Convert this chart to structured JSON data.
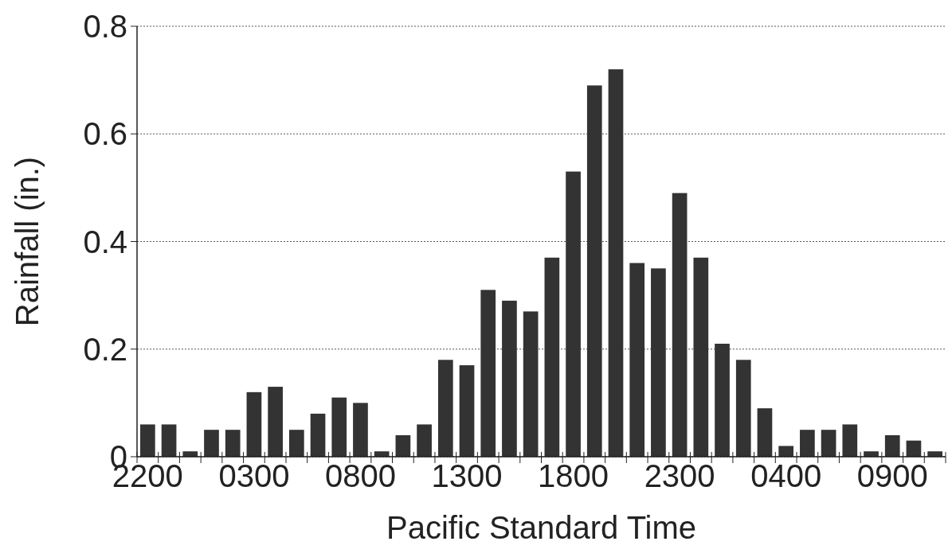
{
  "chart_data": {
    "type": "bar",
    "xlabel": "Pacific Standard Time",
    "ylabel": "Rainfall (in.)",
    "categories": [
      "2200",
      null,
      null,
      null,
      null,
      "0300",
      null,
      null,
      null,
      null,
      "0800",
      null,
      null,
      null,
      null,
      "1300",
      null,
      null,
      null,
      null,
      "1800",
      null,
      null,
      null,
      null,
      "2300",
      null,
      null,
      null,
      null,
      "0400",
      null,
      null,
      null,
      null,
      "0900",
      null,
      null
    ],
    "values": [
      0.06,
      0.06,
      0.01,
      0.05,
      0.05,
      0.12,
      0.13,
      0.05,
      0.08,
      0.11,
      0.1,
      0.01,
      0.04,
      0.06,
      0.18,
      0.17,
      0.31,
      0.29,
      0.27,
      0.37,
      0.53,
      0.69,
      0.72,
      0.36,
      0.35,
      0.49,
      0.37,
      0.21,
      0.18,
      0.09,
      0.02,
      0.05,
      0.05,
      0.06,
      0.01,
      0.04,
      0.03,
      0.01
    ],
    "color": "#333333",
    "ylim": [
      0,
      0.8
    ],
    "yticks": [
      {
        "value": 0,
        "label": "0"
      },
      0.2,
      0.4,
      0.6,
      0.8
    ],
    "grid": "y"
  }
}
